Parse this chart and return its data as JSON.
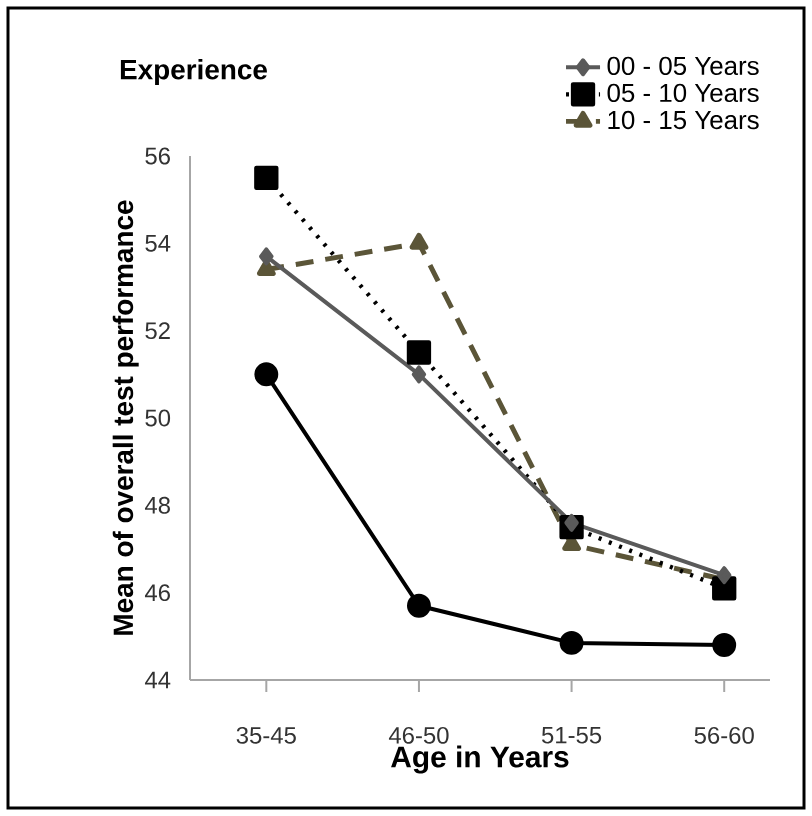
{
  "chart_data": {
    "type": "line",
    "legend_title": "Experience",
    "xlabel": "Age in Years",
    "ylabel": "Mean of overall  test  performance",
    "categories": [
      "35-45",
      "46-50",
      "51-55",
      "56-60"
    ],
    "series": [
      {
        "name": "00 - 05 Years",
        "color": "#5a5a5a",
        "marker": "diamond",
        "line_style": "solid",
        "values": [
          53.7,
          51.0,
          47.6,
          46.4
        ]
      },
      {
        "name": "05 - 10 Years",
        "color": "#000000",
        "marker": "square",
        "line_style": "dotted",
        "values": [
          55.5,
          51.5,
          47.5,
          46.1
        ]
      },
      {
        "name": "10 - 15 Years",
        "color": "#5b5538",
        "marker": "triangle",
        "line_style": "dashed",
        "values": [
          53.4,
          54.0,
          47.1,
          46.3
        ]
      },
      {
        "color": "#000000",
        "marker": "circle",
        "line_style": "solid",
        "values": [
          51.0,
          45.7,
          44.85,
          44.8
        ]
      }
    ],
    "ylim": [
      44,
      56
    ],
    "yticks": [
      44,
      46,
      48,
      50,
      52,
      54,
      56
    ],
    "legend": "top right",
    "grid": false
  }
}
